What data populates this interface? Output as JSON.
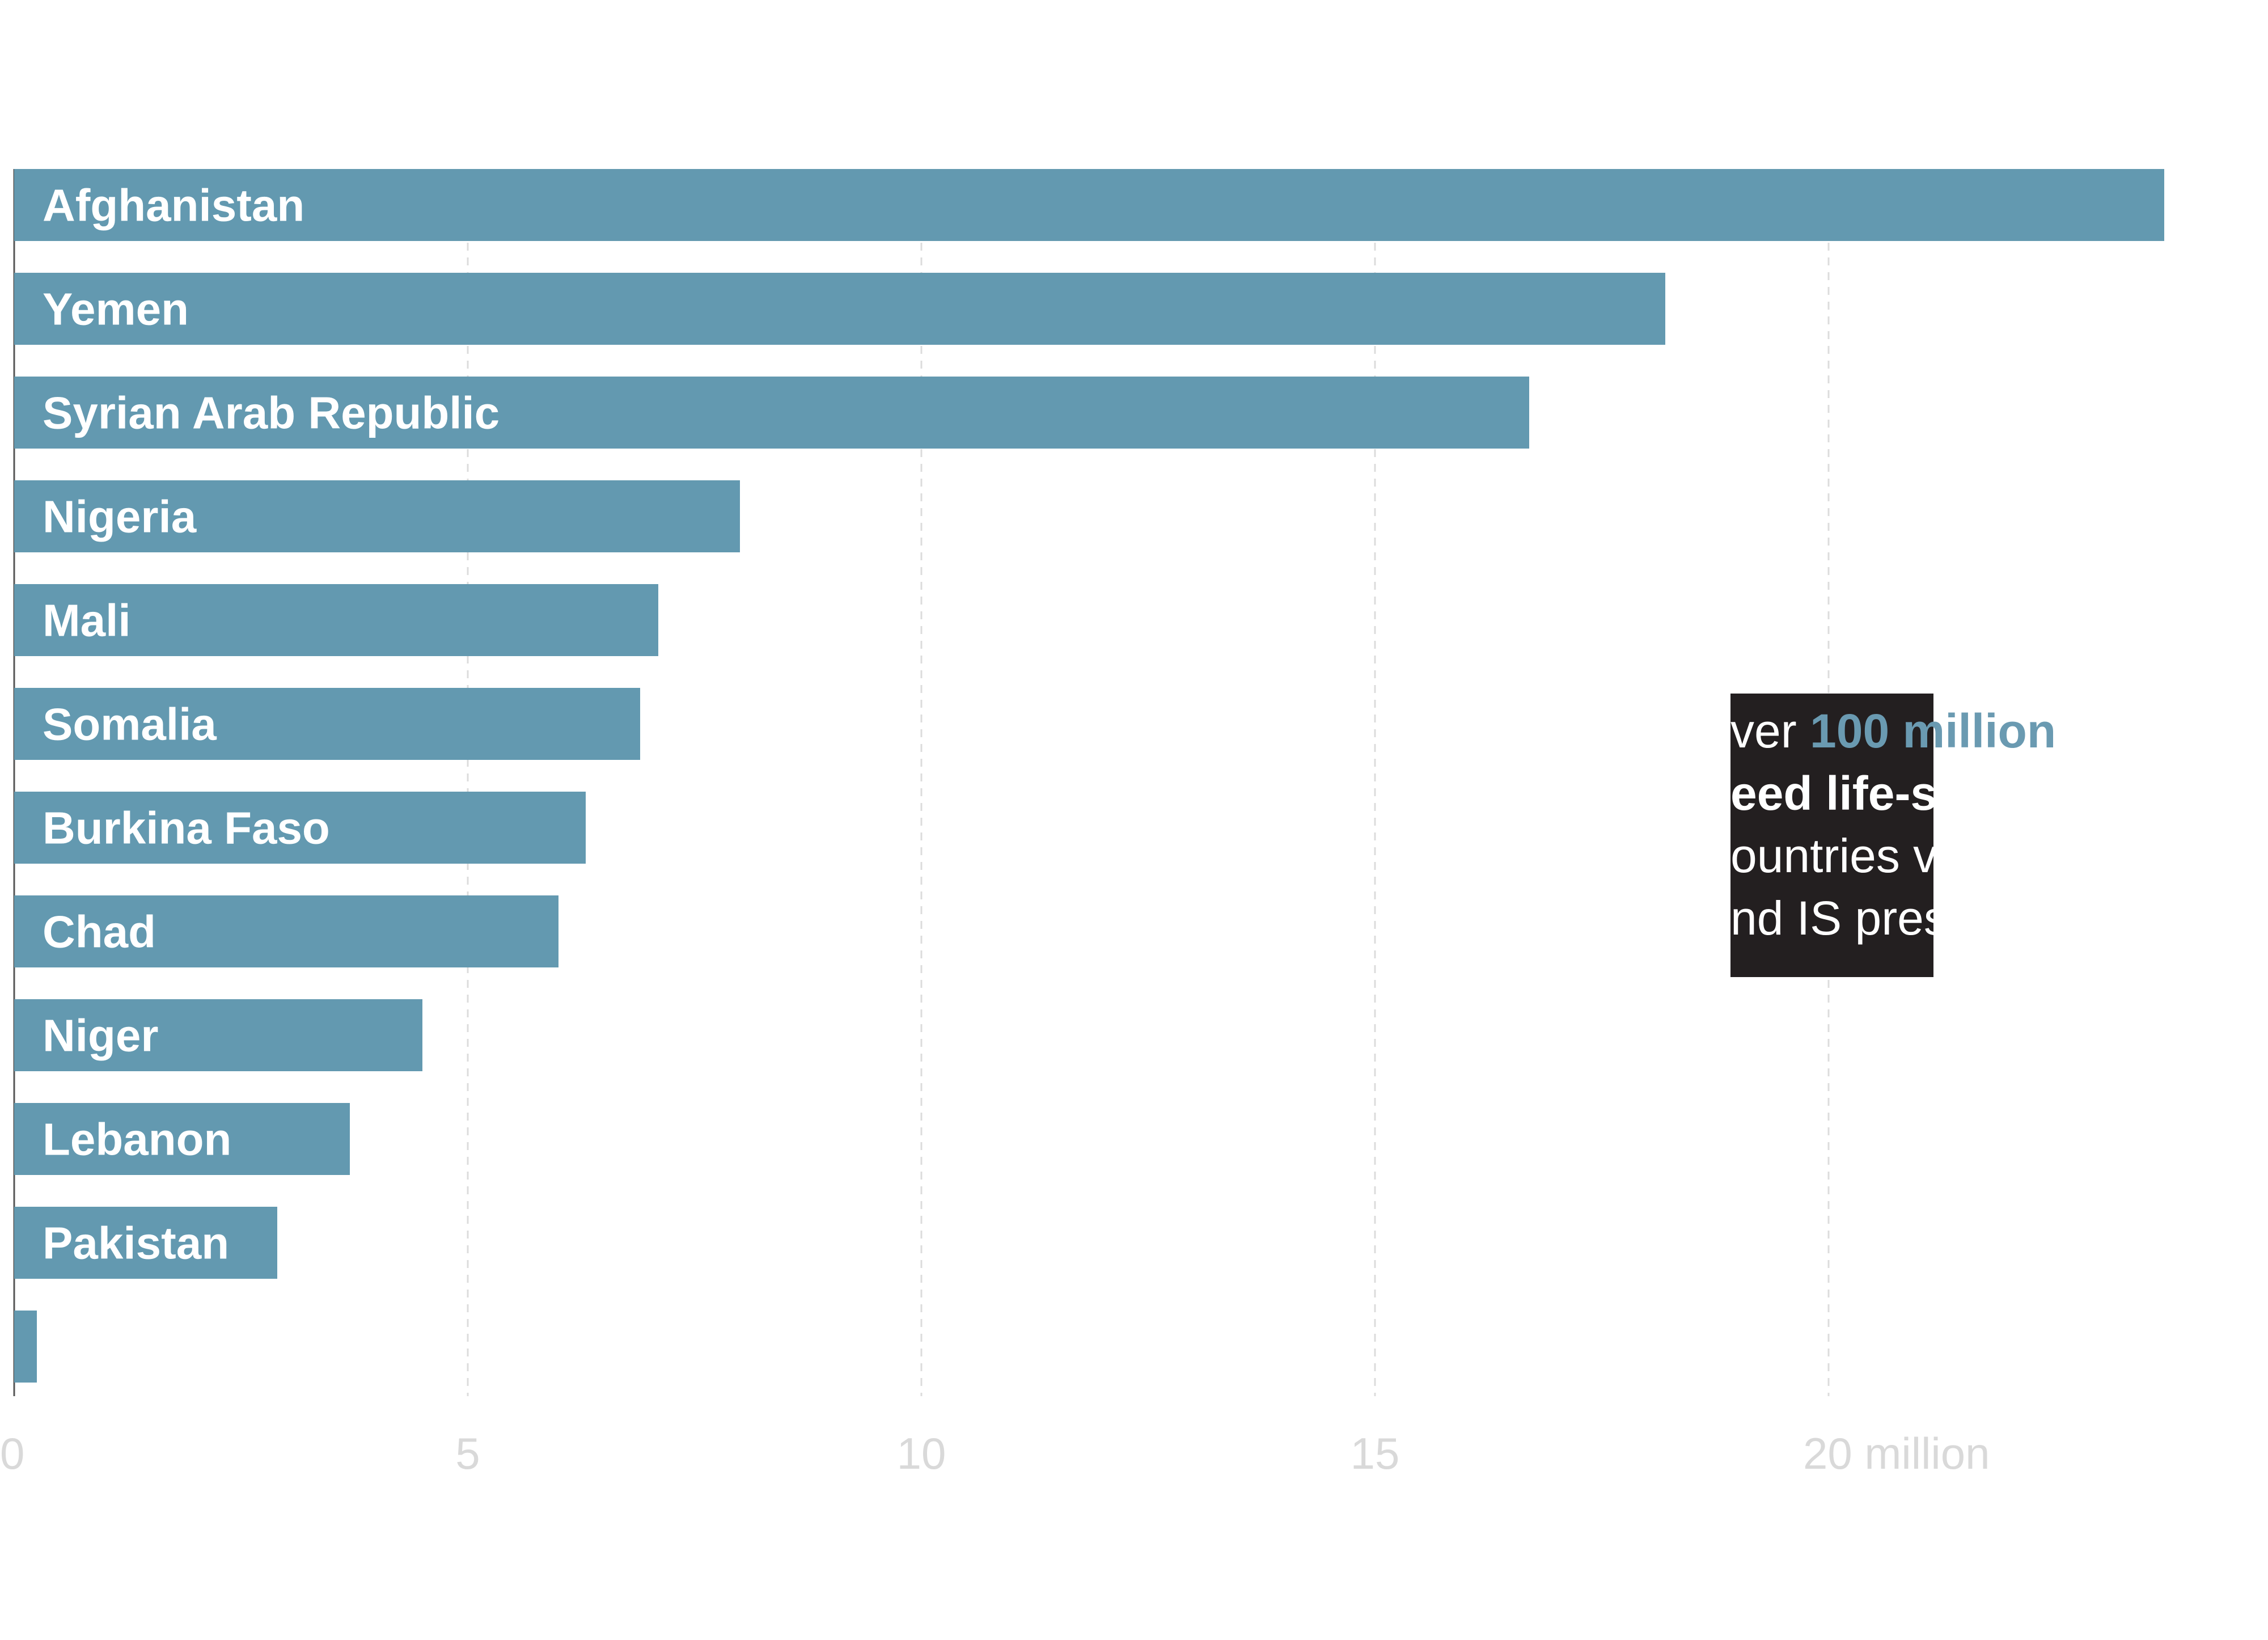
{
  "colors": {
    "bar": "#6399b0",
    "background": "#ffffff",
    "gridline": "#dcdcdc",
    "tick_label": "#d9d9d9",
    "callout_bg": "#231f20",
    "callout_accent": "#6a9ab1"
  },
  "chart_data": {
    "type": "bar",
    "orientation": "horizontal",
    "categories": [
      "Afghanistan",
      "Yemen",
      "Syrian Arab Republic",
      "Nigeria",
      "Mali",
      "Somalia",
      "Burkina Faso",
      "Chad",
      "Niger",
      "Lebanon",
      "Pakistan",
      ""
    ],
    "values": [
      23.7,
      18.2,
      16.7,
      8.0,
      7.1,
      6.9,
      6.3,
      6.0,
      4.5,
      3.7,
      2.9,
      0.25
    ],
    "xlim": [
      0,
      25
    ],
    "ticks": [
      0,
      5,
      10,
      15,
      20
    ],
    "tick_labels": [
      "0",
      "5",
      "10",
      "15",
      "20 million"
    ],
    "grid": true,
    "title": "",
    "xlabel": "",
    "ylabel": ""
  },
  "callout": {
    "lines": [
      [
        {
          "text": "ver ",
          "style": "normal"
        },
        {
          "text": "100 million",
          "style": "accent"
        }
      ],
      [
        {
          "text": "eed life-s",
          "style": "bold"
        }
      ],
      [
        {
          "text": "ountries v",
          "style": "normal"
        }
      ],
      [
        {
          "text": "nd IS pres",
          "style": "normal"
        }
      ]
    ]
  }
}
